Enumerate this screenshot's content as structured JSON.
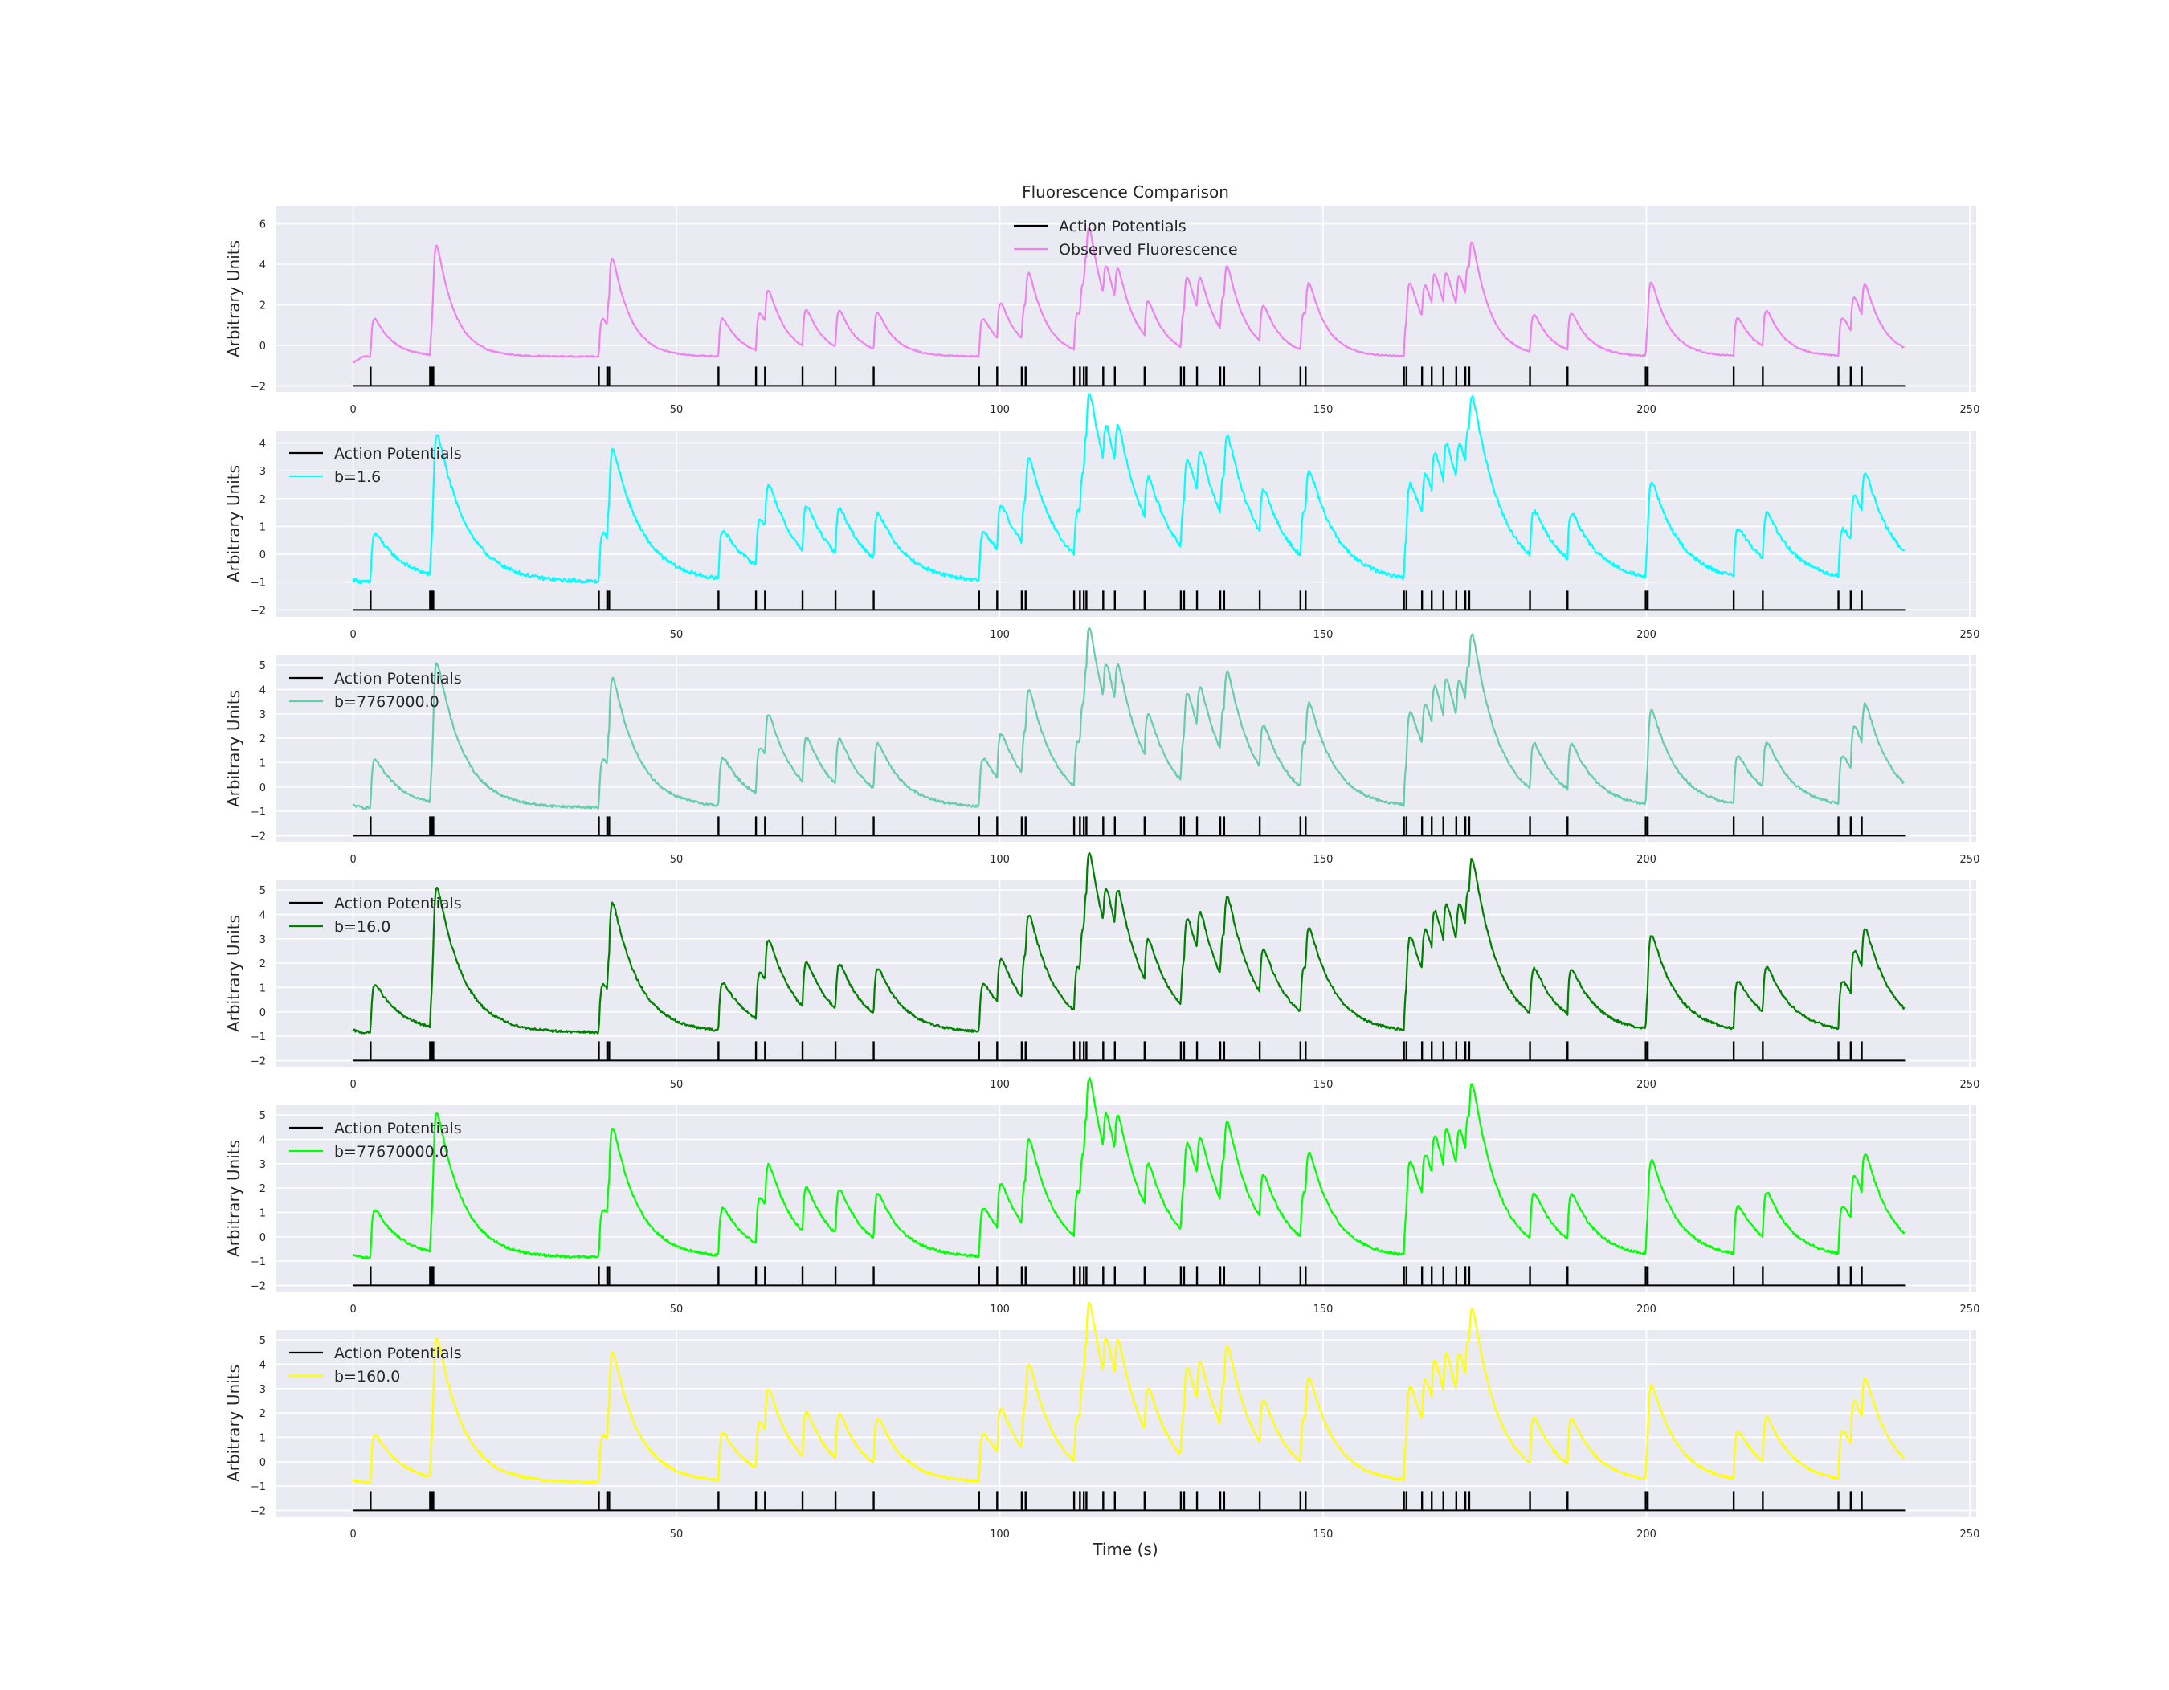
{
  "figure": {
    "title": "Fluorescence Comparison",
    "xlabel": "Time (s)",
    "ylabel": "Arbitrary Units",
    "background": "#eaeaf2",
    "grid_color": "#ffffff"
  },
  "chart_data": {
    "type": "line",
    "x_range": [
      -12,
      251
    ],
    "x_ticks": [
      0,
      50,
      100,
      150,
      200,
      250
    ],
    "x_tick_labels": [
      "0",
      "50",
      "100",
      "150",
      "200",
      "250"
    ],
    "action_potentials": {
      "name": "Action Potentials",
      "color": "#000000",
      "baseline": -2,
      "times": [
        2.7,
        11.9,
        12.2,
        12.4,
        38.0,
        39.3,
        39.6,
        56.5,
        62.3,
        63.7,
        69.5,
        74.6,
        80.5,
        96.8,
        99.6,
        103.4,
        104.0,
        111.5,
        112.4,
        113.0,
        113.4,
        116.0,
        117.8,
        122.4,
        128.0,
        128.5,
        130.5,
        134.1,
        134.7,
        140.2,
        146.5,
        147.3,
        162.5,
        162.9,
        165.3,
        166.8,
        168.6,
        170.6,
        172.0,
        172.6,
        182.0,
        187.8,
        199.9,
        200.2,
        213.5,
        218.0,
        229.7,
        231.6,
        233.3
      ]
    },
    "panels": [
      {
        "legend": "Observed Fluorescence",
        "legend_pos": "top-center",
        "color": "#ee82ee",
        "ylim": [
          -2.3,
          6.9
        ],
        "y_ticks": [
          -2,
          0,
          2,
          4,
          6
        ],
        "y_tick_labels": [
          "−2",
          "0",
          "2",
          "4",
          "6"
        ],
        "baseline": -0.55,
        "amp": 4.6,
        "tau": 2.8,
        "noise": 0.03,
        "start": -0.85
      },
      {
        "legend": "b=1.6",
        "legend_pos": "top-left",
        "color": "#00ffff",
        "ylim": [
          -2.25,
          4.45
        ],
        "y_ticks": [
          -2,
          -1,
          0,
          1,
          2,
          3,
          4
        ],
        "y_tick_labels": [
          "−2",
          "−1",
          "0",
          "1",
          "2",
          "3",
          "4"
        ],
        "baseline": -1.0,
        "amp": 3.9,
        "tau": 4.5,
        "noise": 0.07,
        "start": -0.9
      },
      {
        "legend": "b=7767000.0",
        "legend_pos": "top-left",
        "color": "#66cdaa",
        "ylim": [
          -2.25,
          5.4
        ],
        "y_ticks": [
          -2,
          -1,
          0,
          1,
          2,
          3,
          4,
          5
        ],
        "y_tick_labels": [
          "−2",
          "−1",
          "0",
          "1",
          "2",
          "3",
          "4",
          "5"
        ],
        "baseline": -0.85,
        "amp": 4.5,
        "tau": 4.0,
        "noise": 0.05,
        "start": -0.75
      },
      {
        "legend": "b=16.0",
        "legend_pos": "top-left",
        "color": "#008000",
        "ylim": [
          -2.25,
          5.4
        ],
        "y_ticks": [
          -2,
          -1,
          0,
          1,
          2,
          3,
          4,
          5
        ],
        "y_tick_labels": [
          "−2",
          "−1",
          "0",
          "1",
          "2",
          "3",
          "4",
          "5"
        ],
        "baseline": -0.85,
        "amp": 4.5,
        "tau": 4.0,
        "noise": 0.05,
        "start": -0.75
      },
      {
        "legend": "b=77670000.0",
        "legend_pos": "top-left",
        "color": "#00ff00",
        "ylim": [
          -2.25,
          5.4
        ],
        "y_ticks": [
          -2,
          -1,
          0,
          1,
          2,
          3,
          4,
          5
        ],
        "y_tick_labels": [
          "−2",
          "−1",
          "0",
          "1",
          "2",
          "3",
          "4",
          "5"
        ],
        "baseline": -0.85,
        "amp": 4.5,
        "tau": 4.0,
        "noise": 0.05,
        "start": -0.75
      },
      {
        "legend": "b=160.0",
        "legend_pos": "top-left",
        "color": "#ffff00",
        "ylim": [
          -2.25,
          5.4
        ],
        "y_ticks": [
          -2,
          -1,
          0,
          1,
          2,
          3,
          4,
          5
        ],
        "y_tick_labels": [
          "−2",
          "−1",
          "0",
          "1",
          "2",
          "3",
          "4",
          "5"
        ],
        "baseline": -0.85,
        "amp": 4.5,
        "tau": 4.0,
        "noise": 0.05,
        "start": -0.75
      }
    ]
  }
}
